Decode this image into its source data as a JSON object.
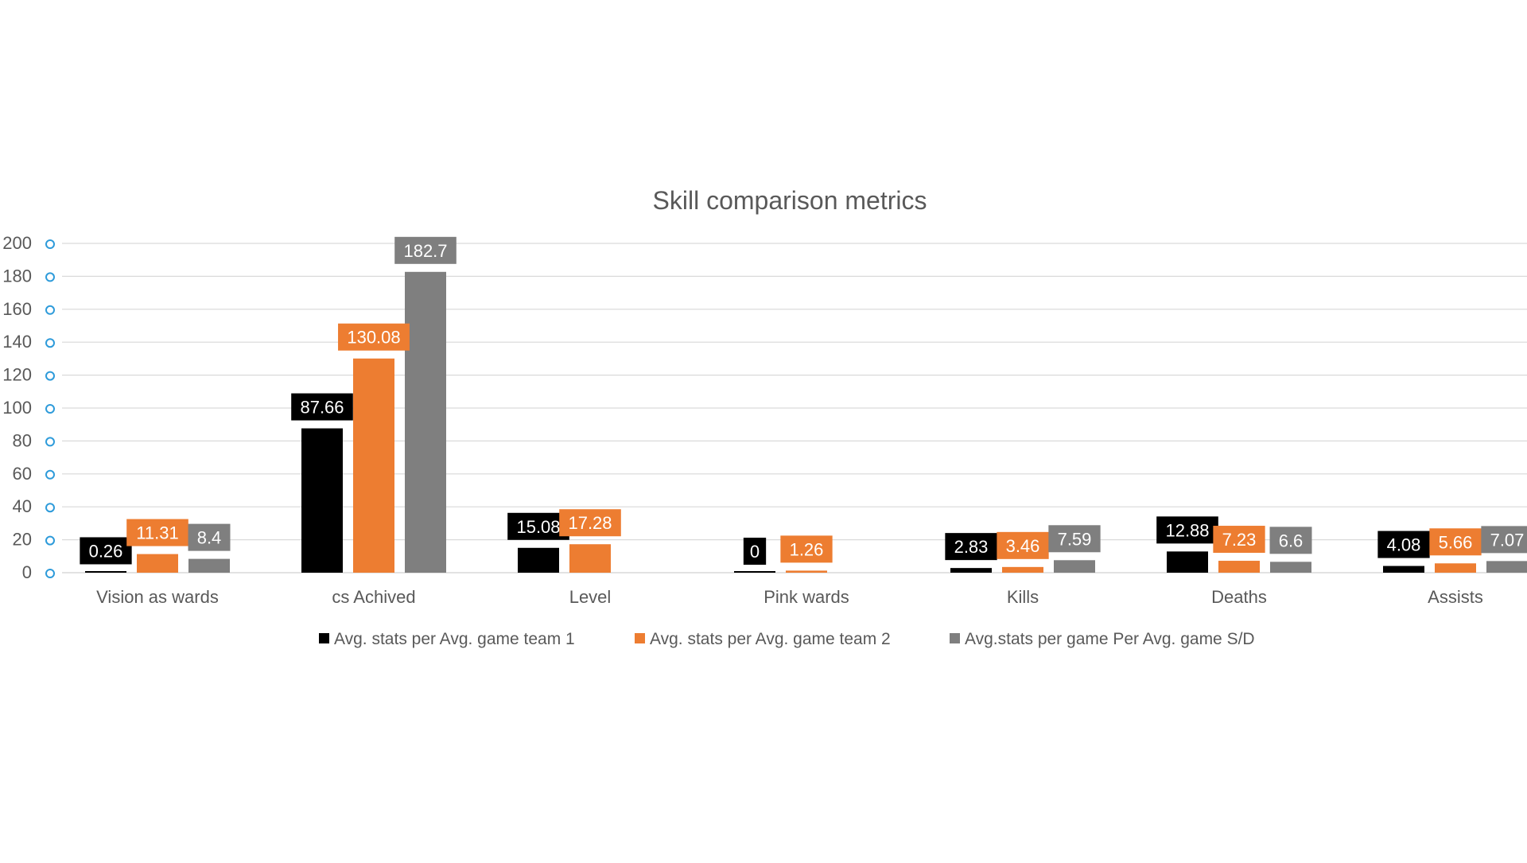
{
  "chart_data": {
    "type": "bar",
    "title": "Skill comparison metrics",
    "xlabel": "",
    "ylabel": "",
    "ylim": [
      0,
      200
    ],
    "yticks": [
      0,
      20,
      40,
      60,
      80,
      100,
      120,
      140,
      160,
      180,
      200
    ],
    "grid": true,
    "legend_position": "bottom",
    "categories": [
      "Vision as wards",
      "cs Achived",
      "Level",
      "Pink wards",
      "Kills",
      "Deaths",
      "Assists"
    ],
    "series": [
      {
        "name": "Avg. stats per Avg. game team 1",
        "color": "#000000",
        "values": [
          0.26,
          87.66,
          15.08,
          0,
          2.83,
          12.88,
          4.08
        ],
        "labels": [
          "0.26",
          "87.66",
          "15.08",
          "0",
          "2.83",
          "12.88",
          "4.08"
        ]
      },
      {
        "name": "Avg. stats per Avg. game team 2",
        "color": "#ED7D31",
        "values": [
          11.31,
          130.08,
          17.28,
          1.26,
          3.46,
          7.23,
          5.66
        ],
        "labels": [
          "11.31",
          "130.08",
          "17.28",
          "1.26",
          "3.46",
          "7.23",
          "5.66"
        ]
      },
      {
        "name": "Avg.stats per game Per Avg. game S/D",
        "color": "#7F7F7F",
        "values": [
          8.4,
          182.7,
          null,
          null,
          7.59,
          6.6,
          7.07
        ],
        "labels": [
          "8.4",
          "182.7",
          null,
          null,
          "7.59",
          "6.6",
          "7.07"
        ]
      }
    ],
    "colors": {
      "grid": "#D9D9D9",
      "axis_text": "#595959",
      "tick_marker": "#2E9BDA"
    }
  }
}
